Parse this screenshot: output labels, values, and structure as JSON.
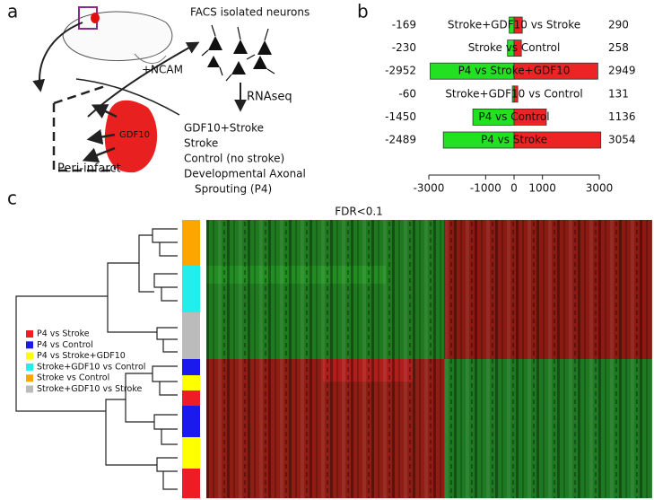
{
  "panel_labels": [
    "a",
    "b",
    "c"
  ],
  "panel_a": {
    "top_label": "FACS isolated neurons",
    "ncam": "+NCAM",
    "rnaseq": "RNAseq",
    "region": "GDF10",
    "infarct": "Peri-infarct",
    "conditions": [
      "GDF10+Stroke",
      "Stroke",
      "Control (no stroke)",
      "Developmental Axonal",
      "Sprouting (P4)"
    ]
  },
  "chart_data": {
    "type": "bar",
    "orientation": "horizontal",
    "categories": [
      "Stroke+GDF10 vs Stroke",
      "Stroke vs Control",
      "P4 vs Stroke+GDF10",
      "Stroke+GDF10 vs Control",
      "P4 vs Control",
      "P4 vs Stroke"
    ],
    "series": [
      {
        "color": "#22e022",
        "values": [
          -169,
          -230,
          -2952,
          -60,
          -1450,
          -2489
        ]
      },
      {
        "color": "#ee2424",
        "values": [
          290,
          258,
          2949,
          131,
          1136,
          3054
        ]
      }
    ],
    "xlim": [
      -3000,
      3000
    ],
    "xticks": [
      -3000,
      -1000,
      0,
      1000,
      3000
    ]
  },
  "panel_c": {
    "title": "FDR<0.1",
    "legend": [
      {
        "label": "P4 vs Stroke",
        "color": "#ee1c24"
      },
      {
        "label": "P4 vs Control",
        "color": "#1a1aee"
      },
      {
        "label": "P4 vs Stroke+GDF10",
        "color": "#ffff00"
      },
      {
        "label": "Stroke+GDF10 vs Control",
        "color": "#22eeee"
      },
      {
        "label": "Stroke vs Control",
        "color": "#ffa500"
      },
      {
        "label": "Stroke+GDF10 vs Stroke",
        "color": "#bbbbbb"
      }
    ]
  }
}
